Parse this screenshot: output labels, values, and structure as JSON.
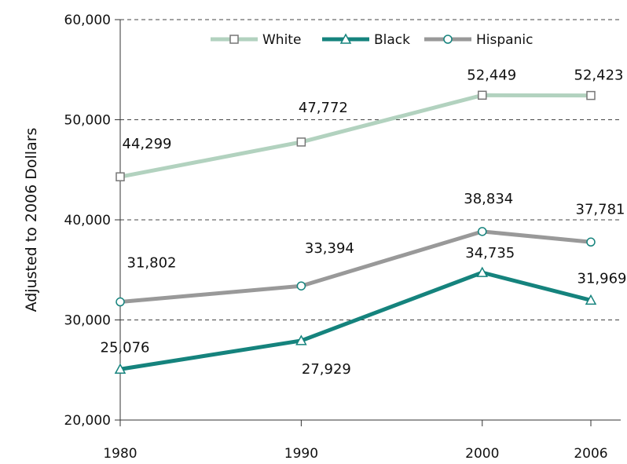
{
  "chart_data": {
    "type": "line",
    "ylabel": "Adjusted to 2006 Dollars",
    "x": [
      1980,
      1990,
      2000,
      2006
    ],
    "x_tick_labels": [
      "1980",
      "1990",
      "2000",
      "2006"
    ],
    "ylim": [
      20000,
      60000
    ],
    "y_ticks": [
      20000,
      30000,
      40000,
      50000,
      60000
    ],
    "y_tick_labels": [
      "20,000",
      "30,000",
      "40,000",
      "50,000",
      "60,000"
    ],
    "grid": "horizontal dashed",
    "legend_position": "top",
    "series": [
      {
        "name": "White",
        "values": [
          44299,
          47772,
          52449,
          52423
        ],
        "labels": [
          "44,299",
          "47,772",
          "52,449",
          "52,423"
        ],
        "color": "#b2d2bf",
        "marker": "square",
        "marker_edge": "#777777"
      },
      {
        "name": "Black",
        "values": [
          25076,
          27929,
          34735,
          31969
        ],
        "labels": [
          "25,076",
          "27,929",
          "34,735",
          "31,969"
        ],
        "color": "#15837d",
        "marker": "triangle",
        "marker_edge": "#15837d"
      },
      {
        "name": "Hispanic",
        "values": [
          31802,
          33394,
          38834,
          37781
        ],
        "labels": [
          "31,802",
          "33,394",
          "38,834",
          "37,781"
        ],
        "color": "#999999",
        "marker": "circle",
        "marker_edge": "#15837d"
      }
    ]
  }
}
